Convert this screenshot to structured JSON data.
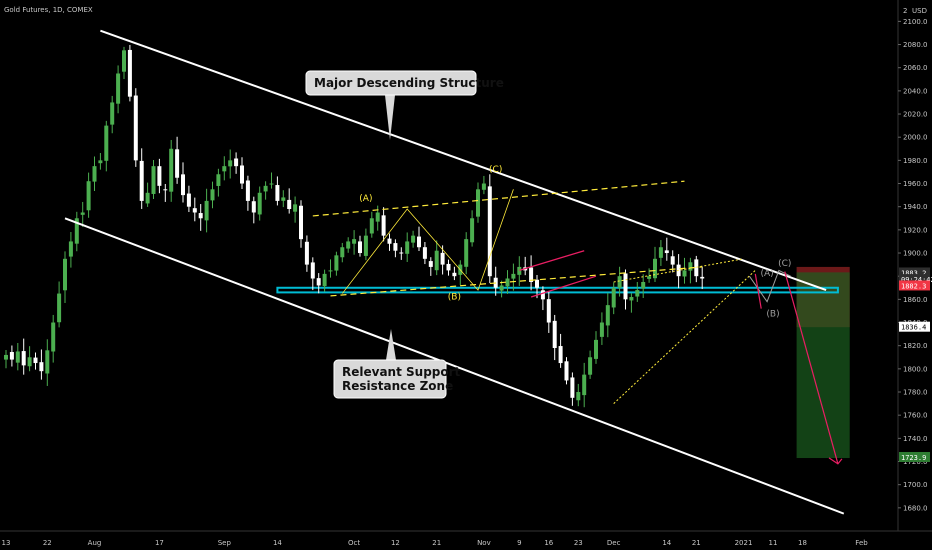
{
  "header": {
    "symbol_line": "Gold Futures, 1D, COMEX",
    "currency": "USD",
    "scale_marker": "2"
  },
  "chart_data": {
    "type": "candlestick",
    "title": "Gold Futures, 1D, COMEX",
    "ylim": [
      1660,
      2115
    ],
    "y_ticks": [
      1680,
      1700,
      1720,
      1740,
      1760,
      1780,
      1800,
      1820,
      1840,
      1860,
      1880,
      1900,
      1920,
      1940,
      1960,
      1980,
      2000,
      2020,
      2040,
      2060,
      2080,
      2100
    ],
    "x_tick_labels": [
      {
        "label": "13",
        "day": 0
      },
      {
        "label": "22",
        "day": 7
      },
      {
        "label": "Aug",
        "day": 15
      },
      {
        "label": "17",
        "day": 26
      },
      {
        "label": "Sep",
        "day": 37
      },
      {
        "label": "14",
        "day": 46
      },
      {
        "label": "Oct",
        "day": 59
      },
      {
        "label": "12",
        "day": 66
      },
      {
        "label": "21",
        "day": 73
      },
      {
        "label": "Nov",
        "day": 81
      },
      {
        "label": "9",
        "day": 87
      },
      {
        "label": "16",
        "day": 92
      },
      {
        "label": "23",
        "day": 97
      },
      {
        "label": "Dec",
        "day": 103
      },
      {
        "label": "14",
        "day": 112
      },
      {
        "label": "21",
        "day": 117
      },
      {
        "label": "2021",
        "day": 125
      },
      {
        "label": "11",
        "day": 130
      },
      {
        "label": "18",
        "day": 135
      },
      {
        "label": "Feb",
        "day": 145
      }
    ],
    "closes": [
      1812,
      1808,
      1815,
      1803,
      1810,
      1805,
      1798,
      1816,
      1840,
      1865,
      1895,
      1910,
      1930,
      1935,
      1962,
      1975,
      1980,
      2010,
      2030,
      2055,
      2075,
      2035,
      1980,
      1945,
      1952,
      1975,
      1958,
      1955,
      1990,
      1965,
      1950,
      1940,
      1935,
      1930,
      1945,
      1955,
      1968,
      1975,
      1980,
      1975,
      1960,
      1945,
      1935,
      1952,
      1958,
      1960,
      1945,
      1948,
      1938,
      1942,
      1912,
      1890,
      1878,
      1872,
      1882,
      1885,
      1898,
      1905,
      1910,
      1912,
      1900,
      1915,
      1930,
      1935,
      1915,
      1908,
      1902,
      1900,
      1910,
      1915,
      1905,
      1895,
      1888,
      1902,
      1890,
      1885,
      1880,
      1890,
      1912,
      1930,
      1955,
      1960,
      1880,
      1870,
      1872,
      1878,
      1882,
      1888,
      1885,
      1875,
      1870,
      1860,
      1840,
      1818,
      1805,
      1790,
      1775,
      1780,
      1795,
      1810,
      1825,
      1840,
      1855,
      1870,
      1880,
      1860,
      1862,
      1868,
      1875,
      1880,
      1895,
      1905,
      1900,
      1890,
      1880,
      1885,
      1892,
      1880,
      1878
    ],
    "channel": {
      "upper": {
        "start": {
          "day": 16,
          "price": 2092
        },
        "end": {
          "day": 139,
          "price": 1868
        }
      },
      "lower": {
        "start": {
          "day": 10,
          "price": 1930
        },
        "end": {
          "day": 142,
          "price": 1675
        }
      }
    },
    "support_zone": {
      "day_start": 46,
      "day_end": 141,
      "price_top": 1870,
      "price_bottom": 1866
    },
    "trade": {
      "entry_price": 1883.3,
      "stop_price": 1836.4,
      "target_price": 1723.9,
      "zone_day_start": 134,
      "zone_day_end": 143,
      "zone_price_top": 1888,
      "zone_price_bottom": 1723,
      "red_zone_price_top": 1888,
      "red_zone_price_bottom": 1836
    },
    "wave_labels": [
      {
        "text": "(A)",
        "day": 61,
        "price": 1945,
        "color": "#ffeb3b"
      },
      {
        "text": "(B)",
        "day": 76,
        "price": 1860,
        "color": "#ffeb3b"
      },
      {
        "text": "(C)",
        "day": 83,
        "price": 1970,
        "color": "#ffeb3b"
      },
      {
        "text": "(A)",
        "day": 129,
        "price": 1880,
        "color": "#9e9e9e"
      },
      {
        "text": "(B)",
        "day": 130,
        "price": 1845,
        "color": "#9e9e9e"
      },
      {
        "text": "(C)",
        "day": 132,
        "price": 1889,
        "color": "#9e9e9e"
      }
    ],
    "annotations": [
      {
        "text": "Major Descending Structure",
        "lines": [
          "Major Descending Structure"
        ]
      },
      {
        "text": "Relevant Support Resistance Zone",
        "lines": [
          "Relevant Support",
          "Resistance Zone"
        ]
      }
    ],
    "price_tags": [
      {
        "text": "1883.2",
        "price": 1883.2,
        "bg": "#2e2e2e",
        "fg": "#ffffff"
      },
      {
        "text": "09:24:42",
        "price": 1877.5,
        "bg": "#2e2e2e",
        "fg": "#ffffff"
      },
      {
        "text": "1882.3",
        "price": 1872,
        "bg": "#f23645",
        "fg": "#ffffff"
      },
      {
        "text": "1836.4",
        "price": 1836.4,
        "bg": "#ffffff",
        "fg": "#000000"
      },
      {
        "text": "1723.9",
        "price": 1723.9,
        "bg": "#2e7d32",
        "fg": "#ffffff"
      }
    ]
  },
  "colors": {
    "background": "#000000",
    "bull": "#4caf50",
    "bear": "#ffffff",
    "channel": "#ffffff",
    "support_zone": "#00bcd4",
    "dashed_yellow": "#ffeb3b",
    "pink": "#e91e63",
    "target_zone": "#1b5e20",
    "stop_zone": "#7f1d1d"
  }
}
